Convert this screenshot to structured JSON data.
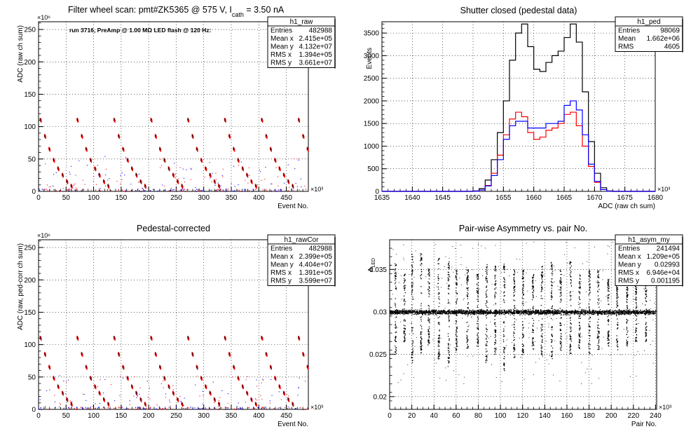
{
  "chart_data": [
    {
      "type": "scatter",
      "title": "Filter wheel scan: pmt#ZK5365 @   575 V, I",
      "title_sub": "cath",
      "title_tail": " = 3.50 nA",
      "xlabel": "Event No.",
      "ylabel": "ADC (raw ch sum)",
      "x_multiplier": "×10³",
      "y_multiplier": "×10⁶",
      "annotation": "run 3716, PreAmp @ 1.00 MΩ LED flash @  120 Hz:",
      "xlim": [
        0,
        490
      ],
      "ylim": [
        0,
        262
      ],
      "xticks": [
        0,
        50,
        100,
        150,
        200,
        250,
        300,
        350,
        400,
        450
      ],
      "yticks": [
        0,
        50,
        100,
        150,
        200,
        250
      ],
      "grid": true,
      "colors": {
        "red": "#ff0000",
        "blue": "#0000ff",
        "black": "#000000"
      },
      "bands": [
        {
          "x_start": 2,
          "level": 110
        },
        {
          "x_start": 10,
          "level": 85
        },
        {
          "x_start": 18,
          "level": 65
        },
        {
          "x_start": 26,
          "level": 48
        },
        {
          "x_start": 34,
          "level": 35
        },
        {
          "x_start": 42,
          "level": 25
        },
        {
          "x_start": 50,
          "level": 15
        },
        {
          "x_start": 58,
          "level": 8
        }
      ],
      "scan_period": 67,
      "stats": {
        "name": "h1_raw",
        "rows": [
          [
            "Entries",
            "482988"
          ],
          [
            "Mean x",
            "2.415e+05"
          ],
          [
            "Mean y",
            "4.132e+07"
          ],
          [
            "RMS x",
            "1.394e+05"
          ],
          [
            "RMS y",
            "3.661e+07"
          ]
        ]
      }
    },
    {
      "type": "line",
      "title": "Shutter closed (pedestal data)",
      "xlabel": "ADC (raw ch sum)",
      "ylabel": "Events",
      "x_multiplier": "×10³",
      "xlim": [
        1635,
        1680
      ],
      "ylim": [
        0,
        3750
      ],
      "xticks": [
        1635,
        1640,
        1645,
        1650,
        1655,
        1660,
        1665,
        1670,
        1675,
        1680
      ],
      "yticks": [
        0,
        500,
        1000,
        1500,
        2000,
        2500,
        3000,
        3500
      ],
      "grid": true,
      "x": [
        1650,
        1651,
        1652,
        1653,
        1654,
        1655,
        1656,
        1657,
        1658,
        1659,
        1660,
        1661,
        1662,
        1663,
        1664,
        1665,
        1666,
        1667,
        1668,
        1669,
        1670,
        1671,
        1672
      ],
      "series": [
        {
          "color": "#000000",
          "values": [
            10,
            60,
            250,
            700,
            1300,
            2000,
            2900,
            3500,
            3700,
            3200,
            2700,
            2650,
            2850,
            3000,
            3100,
            3400,
            3700,
            3300,
            2200,
            1100,
            400,
            80,
            10
          ]
        },
        {
          "color": "#ff0000",
          "values": [
            5,
            30,
            130,
            400,
            800,
            1250,
            1600,
            1750,
            1650,
            1300,
            1150,
            1200,
            1350,
            1400,
            1500,
            1700,
            1750,
            1450,
            1000,
            550,
            200,
            40,
            5
          ]
        },
        {
          "color": "#0000ff",
          "values": [
            5,
            30,
            120,
            350,
            700,
            1150,
            1450,
            1550,
            1550,
            1400,
            1400,
            1400,
            1500,
            1500,
            1550,
            1900,
            2000,
            1800,
            1250,
            600,
            220,
            40,
            5
          ]
        }
      ],
      "stats": {
        "name": "h1_ped",
        "rows": [
          [
            "Entries",
            "98069"
          ],
          [
            "Mean",
            "1.662e+06"
          ],
          [
            "RMS",
            "4605"
          ]
        ]
      }
    },
    {
      "type": "scatter",
      "title": "Pedestal-corrected",
      "xlabel": "Event No.",
      "ylabel": "ADC (raw, ped-corr ch sum)",
      "x_multiplier": "×10³",
      "y_multiplier": "×10⁶",
      "xlim": [
        0,
        490
      ],
      "ylim": [
        0,
        262
      ],
      "xticks": [
        0,
        50,
        100,
        150,
        200,
        250,
        300,
        350,
        400,
        450
      ],
      "yticks": [
        0,
        50,
        100,
        150,
        200,
        250
      ],
      "grid": true,
      "bands": [
        {
          "x_start": 2,
          "level": 110
        },
        {
          "x_start": 10,
          "level": 85
        },
        {
          "x_start": 18,
          "level": 65
        },
        {
          "x_start": 26,
          "level": 48
        },
        {
          "x_start": 34,
          "level": 35
        },
        {
          "x_start": 42,
          "level": 25
        },
        {
          "x_start": 50,
          "level": 15
        },
        {
          "x_start": 58,
          "level": 8
        }
      ],
      "scan_period": 67,
      "stats": {
        "name": "h1_rawCor",
        "rows": [
          [
            "Entries",
            "482988"
          ],
          [
            "Mean x",
            "2.399e+05"
          ],
          [
            "Mean y",
            "4.404e+07"
          ],
          [
            "RMS x",
            "1.391e+05"
          ],
          [
            "RMS y",
            "3.599e+07"
          ]
        ]
      }
    },
    {
      "type": "scatter",
      "title": "Pair-wise Asymmetry vs. pair No.",
      "xlabel": "Pair No.",
      "ylabel": "A",
      "ylabel_sub": "LED",
      "x_multiplier": "×10³",
      "xlim": [
        0,
        241
      ],
      "ylim": [
        0.0185,
        0.0385
      ],
      "xticks": [
        0,
        20,
        40,
        60,
        80,
        100,
        120,
        140,
        160,
        180,
        200,
        220,
        240
      ],
      "yticks": [
        0.02,
        0.025,
        0.03,
        0.035
      ],
      "ytick_labels": [
        "0.02",
        "0.025",
        "0.03",
        "0.035"
      ],
      "grid": true,
      "center": 0.03,
      "spikes": [
        {
          "x": 5,
          "up": 0.036,
          "down": 0.025
        },
        {
          "x": 13,
          "up": 0.0345,
          "down": 0.0265
        },
        {
          "x": 20,
          "up": 0.037,
          "down": 0.024
        },
        {
          "x": 28,
          "up": 0.037,
          "down": 0.025
        },
        {
          "x": 35,
          "up": 0.0355,
          "down": 0.026
        },
        {
          "x": 44,
          "up": 0.0365,
          "down": 0.0245
        },
        {
          "x": 53,
          "up": 0.036,
          "down": 0.024
        },
        {
          "x": 60,
          "up": 0.035,
          "down": 0.0255
        },
        {
          "x": 70,
          "up": 0.035,
          "down": 0.0255
        },
        {
          "x": 79,
          "up": 0.0345,
          "down": 0.026
        },
        {
          "x": 87,
          "up": 0.036,
          "down": 0.024
        },
        {
          "x": 95,
          "up": 0.0355,
          "down": 0.025
        },
        {
          "x": 103,
          "up": 0.036,
          "down": 0.023
        },
        {
          "x": 112,
          "up": 0.035,
          "down": 0.0245
        },
        {
          "x": 120,
          "up": 0.035,
          "down": 0.025
        },
        {
          "x": 129,
          "up": 0.0345,
          "down": 0.0255
        },
        {
          "x": 137,
          "up": 0.0355,
          "down": 0.025
        },
        {
          "x": 146,
          "up": 0.036,
          "down": 0.0245
        },
        {
          "x": 154,
          "up": 0.035,
          "down": 0.0255
        },
        {
          "x": 163,
          "up": 0.036,
          "down": 0.025
        },
        {
          "x": 171,
          "up": 0.0345,
          "down": 0.0255
        },
        {
          "x": 180,
          "up": 0.035,
          "down": 0.025
        },
        {
          "x": 188,
          "up": 0.035,
          "down": 0.0255
        },
        {
          "x": 197,
          "up": 0.034,
          "down": 0.026
        },
        {
          "x": 205,
          "up": 0.0345,
          "down": 0.0255
        },
        {
          "x": 214,
          "up": 0.034,
          "down": 0.026
        },
        {
          "x": 222,
          "up": 0.0335,
          "down": 0.0265
        },
        {
          "x": 231,
          "up": 0.034,
          "down": 0.0265
        }
      ],
      "stats": {
        "name": "h1_asym_my",
        "rows": [
          [
            "Entries",
            "241494"
          ],
          [
            "Mean x",
            "1.209e+05"
          ],
          [
            "Mean y",
            "0.02993"
          ],
          [
            "RMS x",
            "6.946e+04"
          ],
          [
            "RMS y",
            "0.001195"
          ]
        ]
      }
    }
  ]
}
